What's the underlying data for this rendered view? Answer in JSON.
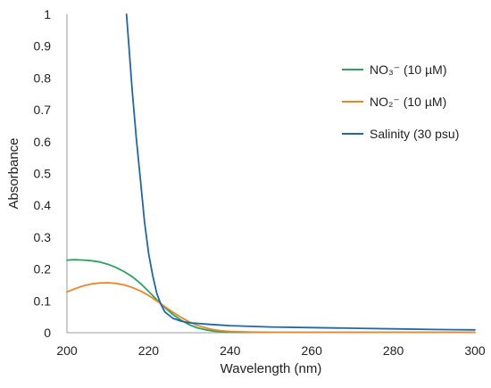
{
  "chart_data": {
    "type": "line",
    "title": "",
    "xlabel": "Wavelength (nm)",
    "ylabel": "Absorbance",
    "xlim": [
      200,
      300
    ],
    "ylim": [
      0,
      1
    ],
    "xticks": [
      "200",
      "220",
      "240",
      "260",
      "280",
      "300"
    ],
    "yticks": [
      "0",
      "0.1",
      "0.2",
      "0.3",
      "0.4",
      "0.5",
      "0.6",
      "0.7",
      "0.8",
      "0.9",
      "1"
    ],
    "grid": false,
    "legend_position": "top-right",
    "series": [
      {
        "name": "NO₃⁻ (10 µM)",
        "color": "#2ca25f",
        "x": [
          200,
          202,
          204,
          206,
          208,
          210,
          212,
          214,
          216,
          218,
          220,
          222,
          224,
          226,
          228,
          230,
          232,
          234,
          236,
          238,
          240,
          245,
          250,
          260,
          270,
          280,
          290,
          300
        ],
        "y": [
          0.228,
          0.229,
          0.228,
          0.226,
          0.222,
          0.215,
          0.205,
          0.192,
          0.176,
          0.155,
          0.13,
          0.104,
          0.079,
          0.057,
          0.039,
          0.025,
          0.015,
          0.009,
          0.005,
          0.003,
          0.002,
          0.001,
          0.001,
          0.001,
          0.001,
          0.001,
          0.001,
          0.001
        ]
      },
      {
        "name": "NO₂⁻ (10 µM)",
        "color": "#e8862a",
        "x": [
          200,
          202,
          204,
          206,
          208,
          210,
          212,
          214,
          216,
          218,
          220,
          222,
          224,
          226,
          228,
          230,
          232,
          234,
          236,
          238,
          240,
          245,
          250,
          260,
          270,
          280,
          290,
          300
        ],
        "y": [
          0.128,
          0.138,
          0.147,
          0.153,
          0.156,
          0.157,
          0.155,
          0.15,
          0.142,
          0.131,
          0.117,
          0.1,
          0.082,
          0.064,
          0.048,
          0.034,
          0.023,
          0.015,
          0.009,
          0.006,
          0.004,
          0.002,
          0.001,
          0.001,
          0.001,
          0.001,
          0.001,
          0.001
        ]
      },
      {
        "name": "Salinity (30 psu)",
        "color": "#2166ac",
        "x": [
          214.6,
          215,
          216,
          217,
          218,
          219,
          220,
          221,
          222,
          223,
          224,
          226,
          228,
          230,
          235,
          240,
          250,
          260,
          270,
          280,
          290,
          300
        ],
        "y": [
          1.0,
          0.93,
          0.76,
          0.61,
          0.48,
          0.35,
          0.25,
          0.18,
          0.125,
          0.09,
          0.065,
          0.045,
          0.036,
          0.031,
          0.026,
          0.022,
          0.018,
          0.016,
          0.014,
          0.012,
          0.01,
          0.009
        ]
      }
    ]
  }
}
